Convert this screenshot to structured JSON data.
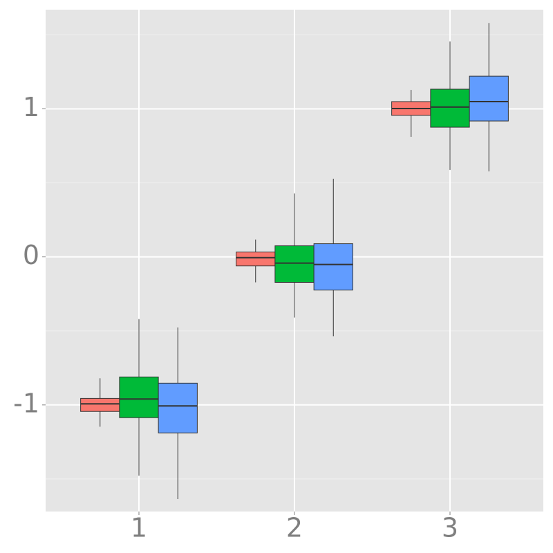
{
  "chart_data": {
    "type": "boxplot",
    "categories": [
      "1",
      "2",
      "3"
    ],
    "ylim": [
      -1.72,
      1.67
    ],
    "yticks": [
      -1,
      0,
      1
    ],
    "yminorticks": [
      -1.5,
      -0.5,
      0.5,
      1.5
    ],
    "grid": true,
    "series": [
      {
        "color": "#F8766D",
        "values": [
          {
            "min": -1.147,
            "q1": -1.044,
            "median": -0.993,
            "q3": -0.956,
            "max": -0.82
          },
          {
            "min": -0.172,
            "q1": -0.061,
            "median": -0.005,
            "q3": 0.033,
            "max": 0.117
          },
          {
            "min": 0.811,
            "q1": 0.956,
            "median": 1.002,
            "q3": 1.049,
            "max": 1.128
          }
        ]
      },
      {
        "color": "#00BA38",
        "values": [
          {
            "min": -1.478,
            "q1": -1.086,
            "median": -0.96,
            "q3": -0.811,
            "max": -0.42
          },
          {
            "min": -0.41,
            "q1": -0.172,
            "median": -0.042,
            "q3": 0.075,
            "max": 0.429
          },
          {
            "min": 0.587,
            "q1": 0.876,
            "median": 1.012,
            "q3": 1.133,
            "max": 1.455
          }
        ]
      },
      {
        "color": "#619CFF",
        "values": [
          {
            "min": -1.636,
            "q1": -1.189,
            "median": -1.007,
            "q3": -0.853,
            "max": -0.476
          },
          {
            "min": -0.536,
            "q1": -0.224,
            "median": -0.051,
            "q3": 0.089,
            "max": 0.527
          },
          {
            "min": 0.578,
            "q1": 0.918,
            "median": 1.049,
            "q3": 1.221,
            "max": 1.58
          }
        ]
      }
    ]
  }
}
